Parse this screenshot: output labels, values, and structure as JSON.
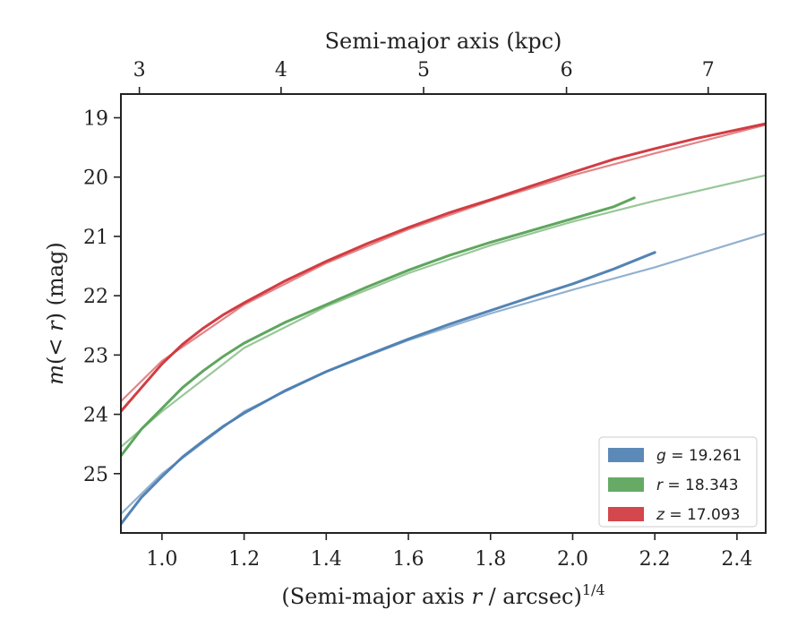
{
  "chart_data": {
    "type": "line",
    "title": "",
    "xlabel": "(Semi-major axis r / arcsec)^1/4",
    "xlabel_parts": {
      "before": "(Semi-major axis ",
      "var": "r",
      "after": " / arcsec)",
      "sup": "1/4"
    },
    "ylabel": "m(< r) (mag)",
    "ylabel_parts": {
      "var": "m",
      "mid": "(< ",
      "var2": "r",
      "after": ") (mag)"
    },
    "top_xlabel": "Semi-major axis (kpc)",
    "xlim": [
      0.9,
      2.47
    ],
    "ylim": [
      26.0,
      18.6
    ],
    "y_inverted": true,
    "x_ticks": [
      1.0,
      1.2,
      1.4,
      1.6,
      1.8,
      2.0,
      2.2,
      2.4
    ],
    "x_tick_labels": [
      "1.0",
      "1.2",
      "1.4",
      "1.6",
      "1.8",
      "2.0",
      "2.2",
      "2.4"
    ],
    "y_ticks": [
      19,
      20,
      21,
      22,
      23,
      24,
      25
    ],
    "y_tick_labels": [
      "19",
      "20",
      "21",
      "22",
      "23",
      "24",
      "25"
    ],
    "top_ticks_kpc": [
      3,
      4,
      5,
      6,
      7
    ],
    "top_tick_labels": [
      "3",
      "4",
      "5",
      "6",
      "7"
    ],
    "top_tick_positions_x": [
      0.945,
      1.29,
      1.637,
      1.985,
      2.33
    ],
    "grid": false,
    "legend_position": "lower-right",
    "series": [
      {
        "name": "g = 19.261",
        "legend_var": "g",
        "legend_value": "= 19.261",
        "color": "#4a7db0",
        "data": {
          "x": [
            0.9,
            0.95,
            1.0,
            1.05,
            1.1,
            1.15,
            1.2,
            1.3,
            1.4,
            1.5,
            1.6,
            1.7,
            1.8,
            1.9,
            2.0,
            2.1,
            2.2
          ],
          "y": [
            25.85,
            25.4,
            25.05,
            24.72,
            24.45,
            24.2,
            23.98,
            23.6,
            23.28,
            23.0,
            22.73,
            22.48,
            22.25,
            22.02,
            21.8,
            21.55,
            21.27
          ]
        },
        "model": {
          "x": [
            0.9,
            1.0,
            1.2,
            1.4,
            1.6,
            1.8,
            2.0,
            2.2,
            2.47
          ],
          "y": [
            25.68,
            25.0,
            23.95,
            23.28,
            22.75,
            22.3,
            21.9,
            21.52,
            20.95
          ]
        }
      },
      {
        "name": "r = 18.343",
        "legend_var": "r",
        "legend_value": "= 18.343",
        "color": "#55a155",
        "data": {
          "x": [
            0.9,
            0.95,
            1.0,
            1.05,
            1.1,
            1.15,
            1.2,
            1.3,
            1.4,
            1.5,
            1.6,
            1.7,
            1.8,
            1.9,
            2.0,
            2.1,
            2.15
          ],
          "y": [
            24.7,
            24.25,
            23.9,
            23.55,
            23.27,
            23.02,
            22.8,
            22.45,
            22.15,
            21.85,
            21.57,
            21.32,
            21.1,
            20.9,
            20.7,
            20.5,
            20.35
          ]
        },
        "model": {
          "x": [
            0.9,
            1.0,
            1.2,
            1.4,
            1.6,
            1.8,
            2.0,
            2.2,
            2.47
          ],
          "y": [
            24.55,
            23.95,
            22.88,
            22.18,
            21.62,
            21.15,
            20.75,
            20.4,
            19.97
          ]
        }
      },
      {
        "name": "z = 17.093",
        "legend_var": "z",
        "legend_value": "= 17.093",
        "color": "#cf3339",
        "data": {
          "x": [
            0.9,
            0.95,
            1.0,
            1.05,
            1.1,
            1.15,
            1.2,
            1.3,
            1.4,
            1.5,
            1.6,
            1.7,
            1.8,
            1.9,
            2.0,
            2.1,
            2.2,
            2.3,
            2.47
          ],
          "y": [
            23.95,
            23.55,
            23.15,
            22.82,
            22.55,
            22.32,
            22.12,
            21.75,
            21.42,
            21.12,
            20.85,
            20.6,
            20.38,
            20.15,
            19.92,
            19.7,
            19.52,
            19.35,
            19.1
          ]
        },
        "model": {
          "x": [
            0.9,
            1.0,
            1.2,
            1.4,
            1.6,
            1.8,
            2.0,
            2.2,
            2.47
          ],
          "y": [
            23.78,
            23.1,
            22.15,
            21.45,
            20.88,
            20.4,
            19.97,
            19.6,
            19.12
          ]
        }
      }
    ]
  }
}
